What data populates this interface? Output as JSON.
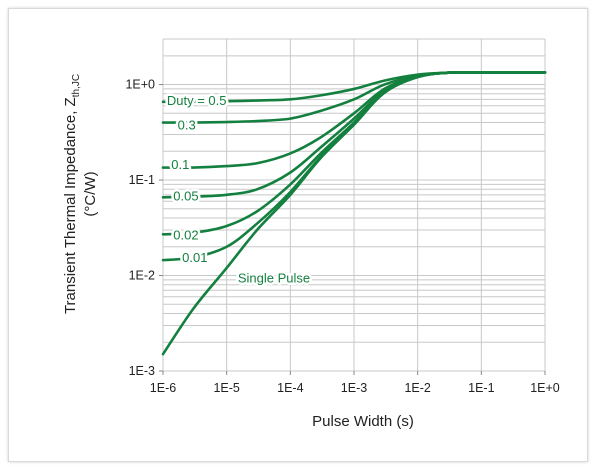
{
  "chart_data": {
    "type": "line",
    "title": "",
    "xlabel": "Pulse Width (s)",
    "ylabel": {
      "line1": "Transient Thermal Impedance, Z",
      "subscript": "th,JC",
      "line2": "(°C/W)"
    },
    "x_scale": "log",
    "y_scale": "log",
    "xlim": [
      1e-06,
      1
    ],
    "ylim": [
      0.001,
      3
    ],
    "x_tick_values": [
      1e-06,
      1e-05,
      0.0001,
      0.001,
      0.01,
      0.1,
      1
    ],
    "x_tick_labels": [
      "1E-6",
      "1E-5",
      "1E-4",
      "1E-3",
      "1E-2",
      "1E-1",
      "1E+0"
    ],
    "y_tick_values": [
      0.001,
      0.01,
      0.1,
      1
    ],
    "y_tick_labels": [
      "1E-3",
      "1E-2",
      "1E-1",
      "1E+0"
    ],
    "grid": true,
    "legend": "none (inline labels)",
    "line_color": "#14803f",
    "grid_color": "#c8c8c8",
    "series": [
      {
        "name": "Duty = 0.5",
        "x": [
          1e-06,
          3e-06,
          1e-05,
          3e-05,
          0.0001,
          0.0003,
          0.001,
          0.003,
          0.01,
          0.03,
          0.1,
          1
        ],
        "y": [
          0.66,
          0.66,
          0.67,
          0.68,
          0.7,
          0.77,
          0.9,
          1.1,
          1.27,
          1.33,
          1.34,
          1.34
        ]
      },
      {
        "name": "0.3",
        "x": [
          1e-06,
          3e-06,
          1e-05,
          3e-05,
          0.0001,
          0.0003,
          0.001,
          0.003,
          0.01,
          0.03,
          0.1,
          1
        ],
        "y": [
          0.4,
          0.4,
          0.405,
          0.415,
          0.44,
          0.53,
          0.7,
          1.0,
          1.24,
          1.33,
          1.34,
          1.34
        ]
      },
      {
        "name": "0.1",
        "x": [
          1e-06,
          3e-06,
          1e-05,
          3e-05,
          0.0001,
          0.0003,
          0.001,
          0.003,
          0.01,
          0.03,
          0.1,
          1
        ],
        "y": [
          0.135,
          0.135,
          0.14,
          0.15,
          0.19,
          0.28,
          0.5,
          0.9,
          1.22,
          1.33,
          1.34,
          1.34
        ]
      },
      {
        "name": "0.05",
        "x": [
          1e-06,
          3e-06,
          1e-05,
          3e-05,
          0.0001,
          0.0003,
          0.001,
          0.003,
          0.01,
          0.03,
          0.1,
          1
        ],
        "y": [
          0.066,
          0.067,
          0.07,
          0.08,
          0.12,
          0.22,
          0.44,
          0.86,
          1.21,
          1.33,
          1.34,
          1.34
        ]
      },
      {
        "name": "0.02",
        "x": [
          1e-06,
          3e-06,
          1e-05,
          3e-05,
          0.0001,
          0.0003,
          0.001,
          0.003,
          0.01,
          0.03,
          0.1,
          1
        ],
        "y": [
          0.027,
          0.028,
          0.033,
          0.047,
          0.09,
          0.19,
          0.4,
          0.84,
          1.2,
          1.33,
          1.34,
          1.34
        ]
      },
      {
        "name": "0.01",
        "x": [
          1e-06,
          3e-06,
          1e-05,
          3e-05,
          0.0001,
          0.0003,
          0.001,
          0.003,
          0.01,
          0.03,
          0.1,
          1
        ],
        "y": [
          0.0145,
          0.0155,
          0.02,
          0.035,
          0.075,
          0.175,
          0.39,
          0.83,
          1.2,
          1.33,
          1.34,
          1.34
        ]
      },
      {
        "name": "Single Pulse",
        "x": [
          1e-06,
          3e-06,
          1e-05,
          3e-05,
          0.0001,
          0.0003,
          0.001,
          0.003,
          0.01,
          0.03,
          0.1,
          1
        ],
        "y": [
          0.0015,
          0.0045,
          0.012,
          0.03,
          0.07,
          0.17,
          0.38,
          0.82,
          1.2,
          1.33,
          1.34,
          1.34
        ]
      }
    ]
  }
}
